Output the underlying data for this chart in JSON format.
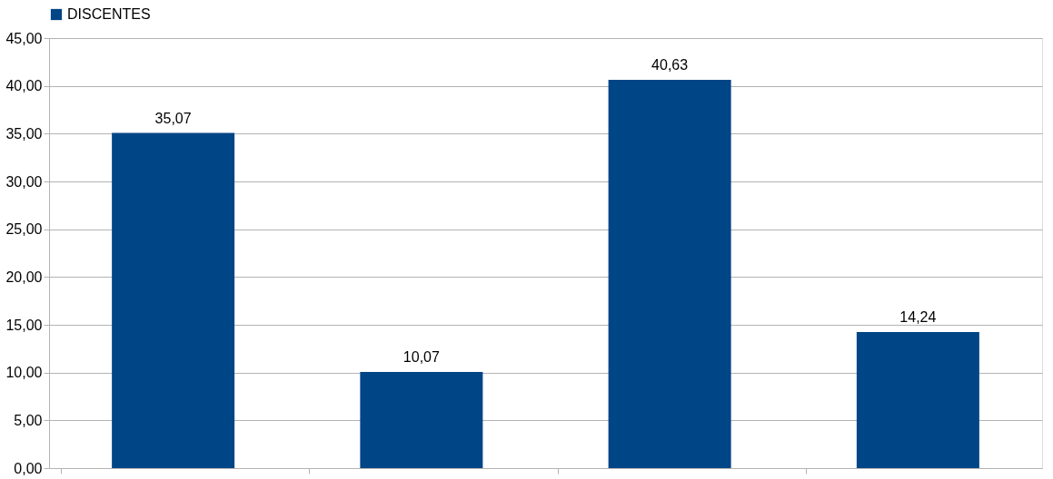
{
  "chart_data": {
    "type": "bar",
    "categories": [
      null,
      null,
      null,
      null
    ],
    "series": [
      {
        "name": "DISCENTES",
        "color": "#004586",
        "values": [
          35.07,
          10.07,
          40.63,
          14.24
        ],
        "value_labels": [
          "35,07",
          "10,07",
          "40,63",
          "14,24"
        ]
      }
    ],
    "ylim": [
      0,
      45
    ],
    "yticks": [
      {
        "value": 0,
        "label": "0,00"
      },
      {
        "value": 5,
        "label": "5,00"
      },
      {
        "value": 10,
        "label": "10,00"
      },
      {
        "value": 15,
        "label": "15,00"
      },
      {
        "value": 20,
        "label": "20,00"
      },
      {
        "value": 25,
        "label": "25,00"
      },
      {
        "value": 30,
        "label": "30,00"
      },
      {
        "value": 35,
        "label": "35,00"
      },
      {
        "value": 40,
        "label": "40,00"
      },
      {
        "value": 45,
        "label": "45,00"
      }
    ],
    "grid": "y",
    "legend": "top",
    "tick_labels": "y"
  }
}
